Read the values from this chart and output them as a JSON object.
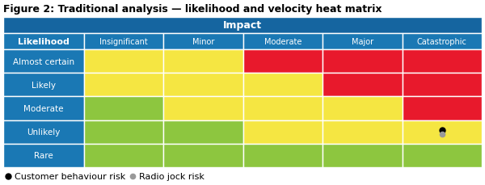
{
  "title": "Figure 2: Traditional analysis — likelihood and velocity heat matrix",
  "impact_header": "Impact",
  "likelihood_header": "Likelihood",
  "col_headers": [
    "Insignificant",
    "Minor",
    "Moderate",
    "Major",
    "Catastrophic"
  ],
  "row_headers": [
    "Almost certain",
    "Likely",
    "Moderate",
    "Unlikely",
    "Rare"
  ],
  "header_bg": "#1565a0",
  "header_text": "#ffffff",
  "row_header_bg": "#1a78b4",
  "row_header_text": "#ffffff",
  "col_header_bg": "#1a78b4",
  "col_header_text": "#ffffff",
  "color_map": {
    "green": "#8dc63f",
    "yellow": "#f5e642",
    "red": "#e8192c"
  },
  "grid": [
    [
      "yellow",
      "yellow",
      "red",
      "red",
      "red"
    ],
    [
      "yellow",
      "yellow",
      "yellow",
      "red",
      "red"
    ],
    [
      "green",
      "yellow",
      "yellow",
      "yellow",
      "red"
    ],
    [
      "green",
      "green",
      "yellow",
      "yellow",
      "yellow"
    ],
    [
      "green",
      "green",
      "green",
      "green",
      "green"
    ]
  ],
  "dot_black_row": 3,
  "dot_black_col": 4,
  "dot_black_color": "#000000",
  "dot_grey_color": "#999999",
  "legend_label1": "Customer behaviour risk",
  "legend_label2": "Radio jock risk",
  "bg_color": "#ffffff",
  "border_color": "#ffffff",
  "title_fontsize": 9,
  "impact_fontsize": 9,
  "header_fontsize": 8,
  "cell_fontsize": 7.5,
  "col_fontsize": 7,
  "legend_fontsize": 8
}
